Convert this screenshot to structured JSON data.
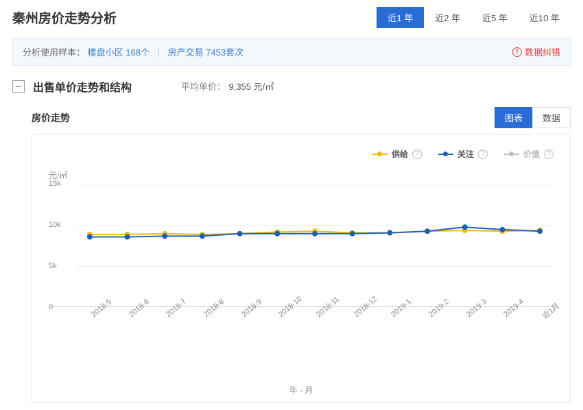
{
  "page": {
    "title": "秦州房价走势分析",
    "time_tabs": [
      "近1 年",
      "近2 年",
      "近5 年",
      "近10 年"
    ],
    "active_time_tab": 0
  },
  "info_bar": {
    "prefix": "分析使用样本：",
    "samples": "楼盘小区 168个",
    "transactions": "房产交易 7453套次",
    "error_report": "数据纠错"
  },
  "section": {
    "title": "出售单价走势和结构",
    "avg_label": "平均单价：",
    "avg_value": "9,355 元/㎡",
    "collapsed": false
  },
  "subsection": {
    "title": "房价走势",
    "view_tabs": [
      "图表",
      "数据"
    ],
    "active_view_tab": 0
  },
  "chart": {
    "type": "line",
    "y_unit": "元/㎡",
    "x_title": "年 - 月",
    "ylim": [
      0,
      15000
    ],
    "yticks": [
      0,
      5000,
      10000,
      15000
    ],
    "ytick_labels": [
      "0",
      "5k",
      "10k",
      "15k"
    ],
    "categories": [
      "2018-5",
      "2018-6",
      "2018-7",
      "2018-8",
      "2018-9",
      "2018-10",
      "2018-11",
      "2018-12",
      "2019-1",
      "2019-2",
      "2019-3",
      "2019-4",
      "近1月"
    ],
    "series": [
      {
        "name": "供给",
        "color": "#f2b90f",
        "marker": "circle",
        "values": [
          8800,
          8800,
          8900,
          8800,
          8900,
          9100,
          9200,
          9000,
          9000,
          9200,
          9300,
          9200,
          9300
        ]
      },
      {
        "name": "关注",
        "color": "#1f5fb0",
        "marker": "circle",
        "values": [
          8500,
          8500,
          8600,
          8600,
          8900,
          8900,
          8900,
          8900,
          9000,
          9200,
          9700,
          9400,
          9200
        ]
      },
      {
        "name": "价值",
        "color": "#bfbfbf",
        "marker": "circle",
        "values": null
      }
    ],
    "line_width": 2,
    "marker_size": 4,
    "grid_color": "#eeeeee",
    "background_color": "#ffffff"
  }
}
